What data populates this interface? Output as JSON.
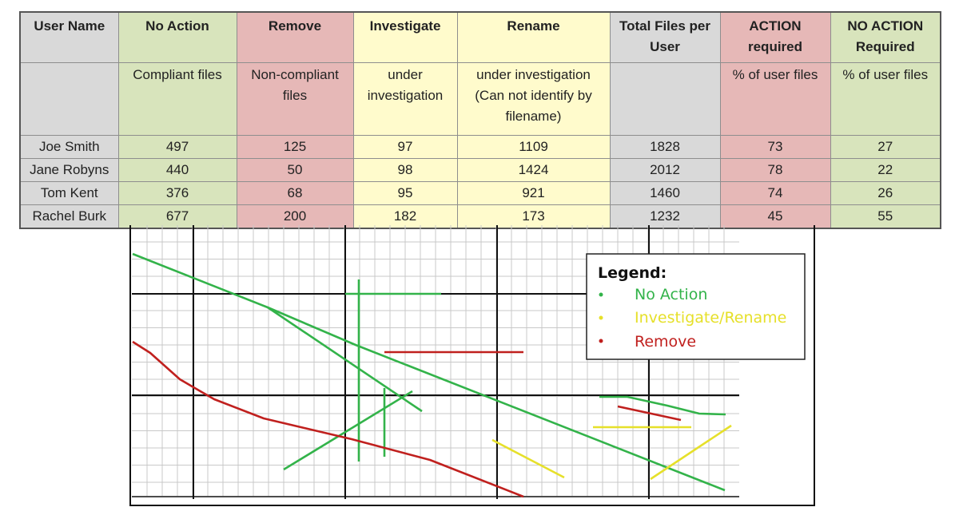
{
  "table": {
    "headers": [
      {
        "label": "User Name",
        "color": "gray"
      },
      {
        "label": "No Action",
        "color": "green"
      },
      {
        "label": "Remove",
        "color": "red"
      },
      {
        "label": "Investigate",
        "color": "yellow"
      },
      {
        "label": "Rename",
        "color": "yellow"
      },
      {
        "label": "Total Files per User",
        "color": "gray"
      },
      {
        "label": "ACTION required",
        "color": "red"
      },
      {
        "label": "NO ACTION Required",
        "color": "green"
      }
    ],
    "subheaders": [
      "",
      "Compliant files",
      "Non-compliant files",
      "under investigation",
      "under investigation (Can not identify by filename)",
      "",
      "% of user files",
      "% of user files"
    ],
    "rows": [
      [
        "Joe Smith",
        "497",
        "125",
        "97",
        "1109",
        "1828",
        "73",
        "27"
      ],
      [
        "Jane Robyns",
        "440",
        "50",
        "98",
        "1424",
        "2012",
        "78",
        "22"
      ],
      [
        "Tom Kent",
        "376",
        "68",
        "95",
        "921",
        "1460",
        "74",
        "26"
      ],
      [
        "Rachel Burk",
        "677",
        "200",
        "182",
        "173",
        "1232",
        "45",
        "55"
      ]
    ]
  },
  "colors": {
    "gray": "#d9d9d9",
    "green": "#d8e4bc",
    "red": "#e6b8b7",
    "yellow": "#fffbcc",
    "line_green": "#33b34a",
    "line_yellow": "#e6e02a",
    "line_red": "#c0201e"
  },
  "chart_data": {
    "type": "line",
    "title": "",
    "xlabel": "",
    "ylabel": "",
    "grid": true,
    "legend": {
      "title": "Legend:",
      "placement": "top-right",
      "entries": [
        {
          "name": "No Action",
          "color": "#33b34a"
        },
        {
          "name": "Investigate/Rename",
          "color": "#e6e02a"
        },
        {
          "name": "Remove",
          "color": "#c0201e"
        }
      ]
    }
  }
}
